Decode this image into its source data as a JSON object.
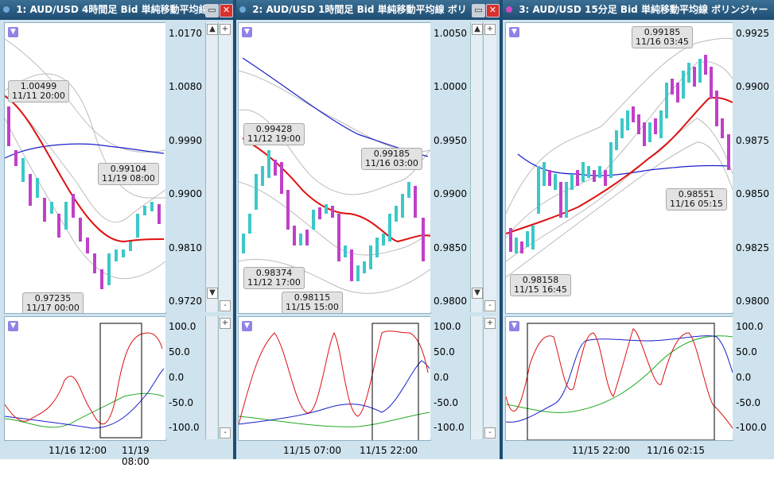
{
  "colors": {
    "bull": "#3cc8c8",
    "bear": "#c040c8",
    "ma_short": "#dd1111",
    "ma_long": "#1a1fcc",
    "band": "#bbbbbb"
  },
  "panes": [
    {
      "title": "1: AUD/USD 4時間足 Bid 単純移動平均線",
      "dot_color": "#6fa8d6",
      "price_ticks": [
        "1.0170",
        "1.0080",
        "0.9990",
        "0.9900",
        "0.9810",
        "0.9720"
      ],
      "osc_ticks": [
        "100.0",
        "50.0",
        "0.0",
        "-50.0",
        "-100.0"
      ],
      "time_ticks": [
        "11/16 12:00",
        "11/19 08:00"
      ],
      "callouts": [
        {
          "price": "1.00499",
          "time": "11/11 20:00"
        },
        {
          "price": "0.99104",
          "time": "11/19 08:00"
        },
        {
          "price": "0.97235",
          "time": "11/17 00:00"
        }
      ]
    },
    {
      "title": "2: AUD/USD 1時間足 Bid 単純移動平均線 ボリ",
      "dot_color": "#6fa8d6",
      "price_ticks": [
        "1.0050",
        "1.0000",
        "0.9950",
        "0.9900",
        "0.9850",
        "0.9800"
      ],
      "osc_ticks": [
        "100.0",
        "50.0",
        "0.0",
        "-50.0",
        "-100.0"
      ],
      "time_ticks": [
        "11/15 07:00",
        "11/15 22:00"
      ],
      "callouts": [
        {
          "price": "0.99428",
          "time": "11/12 19:00"
        },
        {
          "price": "0.99185",
          "time": "11/16 03:00"
        },
        {
          "price": "0.98374",
          "time": "11/12 17:00"
        },
        {
          "price": "0.98115",
          "time": "11/15 15:00"
        }
      ]
    },
    {
      "title": "3: AUD/USD 15分足 Bid 単純移動平均線 ボリンジャー",
      "dot_color": "#d14bc6",
      "price_ticks": [
        "0.9925",
        "0.9900",
        "0.9875",
        "0.9850",
        "0.9825",
        "0.9800"
      ],
      "osc_ticks": [
        "100.0",
        "50.0",
        "0.0",
        "-50.0",
        "-100.0"
      ],
      "time_ticks": [
        "11/15 22:00",
        "11/16 02:15"
      ],
      "callouts": [
        {
          "price": "0.99185",
          "time": "11/16 03:45"
        },
        {
          "price": "0.98551",
          "time": "11/16 05:15"
        },
        {
          "price": "0.98158",
          "time": "11/15 16:45"
        }
      ]
    }
  ]
}
